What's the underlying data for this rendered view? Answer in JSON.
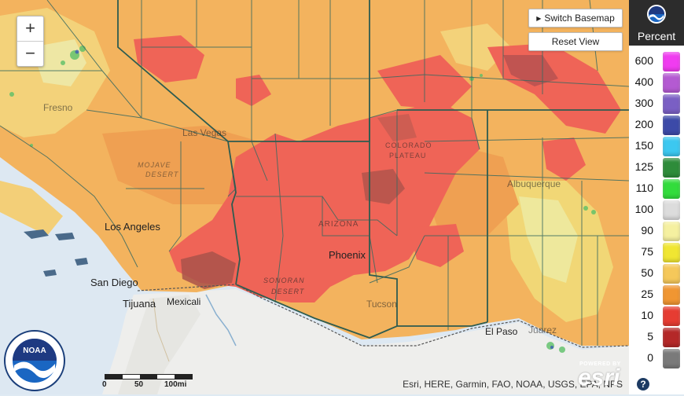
{
  "controls": {
    "zoom_in": "+",
    "zoom_out": "−",
    "switch_basemap": "Switch Basemap",
    "reset_view": "Reset View"
  },
  "legend": {
    "title": "Percent",
    "logo_label": "NOAA",
    "items": [
      {
        "label": "600",
        "color": "#f03cf0"
      },
      {
        "label": "400",
        "color": "#b45ad2"
      },
      {
        "label": "300",
        "color": "#7a5fc4"
      },
      {
        "label": "200",
        "color": "#3c4aa8"
      },
      {
        "label": "150",
        "color": "#3cc8f0"
      },
      {
        "label": "125",
        "color": "#2e8c3a"
      },
      {
        "label": "110",
        "color": "#32dc3c"
      },
      {
        "label": "100",
        "color": "#dcdcdc"
      },
      {
        "label": "90",
        "color": "#f5f0a0"
      },
      {
        "label": "75",
        "color": "#f0e632"
      },
      {
        "label": "50",
        "color": "#f5c85a"
      },
      {
        "label": "25",
        "color": "#f09632"
      },
      {
        "label": "10",
        "color": "#e63c32"
      },
      {
        "label": "5",
        "color": "#b42828"
      },
      {
        "label": "0",
        "color": "#7a7a7a"
      }
    ]
  },
  "map": {
    "places": [
      {
        "name": "Los Angeles"
      },
      {
        "name": "San Diego"
      },
      {
        "name": "Tijuana"
      },
      {
        "name": "Mexicali"
      },
      {
        "name": "Phoenix"
      },
      {
        "name": "El Paso"
      },
      {
        "name": "Las Vegas"
      },
      {
        "name": "Fresno"
      },
      {
        "name": "Tucson"
      },
      {
        "name": "Juarez"
      },
      {
        "name": "Albuquerque"
      }
    ],
    "regions": [
      {
        "name": "SONORAN"
      },
      {
        "name": "DESERT"
      },
      {
        "name": "COLORADO"
      },
      {
        "name": "PLATEAU"
      },
      {
        "name": "ARIZONA"
      },
      {
        "name": "MOJAVE"
      },
      {
        "name": "DESERT"
      }
    ]
  },
  "scale_bar": {
    "ticks": [
      "0",
      "50",
      "100mi"
    ]
  },
  "attribution": "Esri, HERE, Garmin, FAO, NOAA, USGS, EPA, NPS",
  "esri_logo": {
    "powered_by": "POWERED BY",
    "name": "esri"
  },
  "help": "?"
}
